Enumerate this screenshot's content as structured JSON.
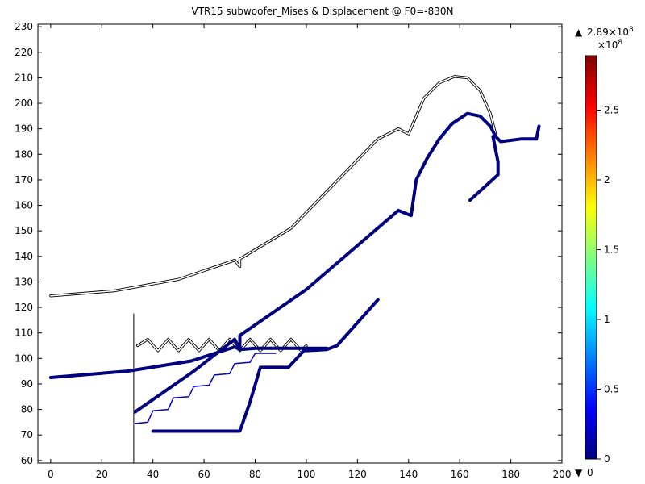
{
  "chart_data": {
    "type": "heatmap",
    "title": "VTR15 subwoofer_Mises & Displacement @ F0=-830N",
    "xlim": [
      -5,
      200
    ],
    "ylim": [
      59,
      231
    ],
    "x_ticks": [
      "0",
      "20",
      "40",
      "60",
      "80",
      "100",
      "120",
      "140",
      "160",
      "180",
      "200"
    ],
    "y_ticks": [
      "60",
      "70",
      "80",
      "90",
      "100",
      "110",
      "120",
      "130",
      "140",
      "150",
      "160",
      "170",
      "180",
      "190",
      "200",
      "210",
      "220",
      "230"
    ],
    "colorbar": {
      "max_label": "2.89×10",
      "max_exp": "8",
      "multiplier_base": "×10",
      "multiplier_exp": "8",
      "tick_labels": [
        "0",
        "0.5",
        "1",
        "1.5",
        "2",
        "2.5"
      ],
      "tick_values": [
        0,
        0.5,
        1,
        1.5,
        2,
        2.5
      ],
      "min_label": "0",
      "range": [
        0,
        2.89
      ],
      "colormap": [
        "#00007f",
        "#0000ff",
        "#0080ff",
        "#00ffff",
        "#80ff80",
        "#ffff00",
        "#ff8000",
        "#ff0000",
        "#800000"
      ]
    },
    "series": [
      {
        "kind": "undeformed-cone",
        "color": "#000000",
        "points": [
          [
            0,
            124.5
          ],
          [
            25,
            126.5
          ],
          [
            50,
            131
          ],
          [
            72,
            138.5
          ],
          [
            74,
            136
          ],
          [
            74,
            139
          ],
          [
            94,
            151
          ],
          [
            128,
            186
          ],
          [
            136,
            190
          ],
          [
            140,
            188
          ],
          [
            143,
            195
          ],
          [
            146,
            202
          ],
          [
            152,
            208
          ],
          [
            158,
            210.5
          ],
          [
            163,
            210
          ],
          [
            168,
            205
          ],
          [
            172,
            196
          ],
          [
            174,
            188
          ]
        ]
      },
      {
        "kind": "undeformed-spider",
        "color": "#000000",
        "points": [
          [
            34,
            105
          ],
          [
            38,
            107.5
          ],
          [
            42,
            103
          ],
          [
            46,
            107.5
          ],
          [
            50,
            103
          ],
          [
            54,
            107.5
          ],
          [
            58,
            103
          ],
          [
            62,
            107.5
          ],
          [
            66,
            103
          ],
          [
            70,
            107.5
          ],
          [
            74,
            103
          ],
          [
            78,
            107.5
          ],
          [
            82,
            103
          ],
          [
            86,
            107.5
          ],
          [
            90,
            103
          ],
          [
            94,
            107.5
          ],
          [
            98,
            103
          ],
          [
            100,
            105
          ]
        ]
      },
      {
        "kind": "undeformed-frame",
        "color": "#000000",
        "points": [
          [
            32.5,
            117.5
          ],
          [
            32.5,
            59
          ]
        ]
      },
      {
        "kind": "deformed-cone",
        "color": "#00007f",
        "points": [
          [
            33,
            79
          ],
          [
            56,
            95
          ],
          [
            72,
            107.5
          ],
          [
            74,
            103.5
          ],
          [
            74,
            109
          ],
          [
            100,
            127
          ],
          [
            136,
            158
          ],
          [
            141,
            156
          ],
          [
            143,
            170
          ],
          [
            147,
            178
          ],
          [
            152,
            186
          ],
          [
            157,
            192
          ],
          [
            163,
            196
          ],
          [
            168,
            195
          ],
          [
            172,
            191
          ],
          [
            174,
            187
          ],
          [
            176,
            185
          ],
          [
            184,
            186
          ],
          [
            190,
            186
          ],
          [
            191,
            191
          ]
        ]
      },
      {
        "kind": "deformed-cone-edge",
        "color": "#00007f",
        "points": [
          [
            173,
            187
          ],
          [
            175,
            177
          ],
          [
            175,
            172
          ],
          [
            164,
            162
          ]
        ]
      },
      {
        "kind": "deformed-dustcap",
        "color": "#00007f",
        "points": [
          [
            0,
            92.5
          ],
          [
            30,
            95
          ],
          [
            55,
            99
          ],
          [
            72,
            104.5
          ],
          [
            74,
            103.5
          ],
          [
            80,
            104
          ],
          [
            98,
            104
          ],
          [
            108,
            104
          ]
        ]
      },
      {
        "kind": "deformed-spider",
        "color": "#0000bf",
        "points": [
          [
            33,
            74.5
          ],
          [
            38,
            75
          ],
          [
            40,
            79.5
          ],
          [
            46,
            80
          ],
          [
            48,
            84.5
          ],
          [
            54,
            85
          ],
          [
            56,
            89
          ],
          [
            62,
            89.5
          ],
          [
            64,
            93.5
          ],
          [
            70,
            94
          ],
          [
            72,
            98
          ],
          [
            78,
            98.5
          ],
          [
            80,
            102
          ],
          [
            88,
            102
          ]
        ]
      },
      {
        "kind": "deformed-surround",
        "color": "#00007f",
        "points": [
          [
            40,
            71.5
          ],
          [
            74,
            71.5
          ],
          [
            78,
            83
          ],
          [
            82,
            96.5
          ],
          [
            93,
            96.5
          ],
          [
            99,
            103
          ],
          [
            108,
            103.5
          ],
          [
            112,
            105
          ],
          [
            128,
            123
          ]
        ]
      }
    ]
  }
}
